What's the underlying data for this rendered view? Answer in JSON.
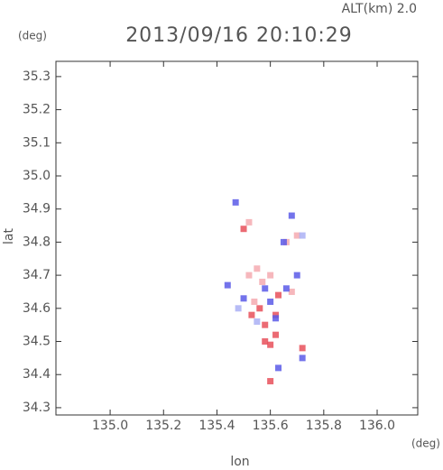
{
  "chart_data": {
    "type": "scatter",
    "title": "2013/09/16 20:10:29",
    "subtitle": "ALT(km) 2.0",
    "y_unit": "(deg)",
    "x_unit": "(deg)",
    "xlabel": "lon",
    "ylabel": "lat",
    "xlim": [
      134.797,
      136.152
    ],
    "ylim": [
      34.278,
      35.346
    ],
    "xticks": [
      {
        "value": 135,
        "label": "135.0"
      },
      135.2,
      135.4,
      135.6,
      135.8,
      {
        "value": 136,
        "label": "136.0"
      }
    ],
    "yticks": [
      34.3,
      34.4,
      34.5,
      34.6,
      34.7,
      34.8,
      34.9,
      {
        "value": 35,
        "label": "35.0"
      },
      35.1,
      35.2,
      35.3
    ],
    "grid": false,
    "x": [
      135.6,
      135.6,
      135.58,
      135.72,
      135.56,
      135.54,
      135.62,
      135.55,
      135.6,
      135.5,
      135.52,
      135.66,
      135.63,
      135.58,
      135.52,
      135.68,
      135.57,
      135.53,
      135.62,
      135.7,
      135.63,
      135.72,
      135.44,
      135.5,
      135.6,
      135.66,
      135.65,
      135.68,
      135.47,
      135.62,
      135.55,
      135.7,
      135.58,
      135.72,
      135.48
    ],
    "values": [
      34.38,
      34.49,
      34.5,
      34.48,
      34.6,
      34.62,
      34.58,
      34.72,
      34.7,
      34.84,
      34.86,
      34.8,
      34.64,
      34.55,
      34.7,
      34.65,
      34.68,
      34.58,
      34.52,
      34.82,
      34.42,
      34.45,
      34.67,
      34.63,
      34.62,
      34.66,
      34.8,
      34.88,
      34.92,
      34.57,
      34.56,
      34.7,
      34.66,
      34.82,
      34.6
    ],
    "colors": [
      "#e8505a",
      "#e8505a",
      "#e8505a",
      "#e8505a",
      "#e8505a",
      "#f4aab0",
      "#e8505a",
      "#f4aab0",
      "#f4aab0",
      "#e8505a",
      "#f4aab0",
      "#f4aab0",
      "#e8505a",
      "#e8505a",
      "#f4aab0",
      "#f4aab0",
      "#f4aab0",
      "#e8505a",
      "#e8505a",
      "#f4aab0",
      "#5a5ae8",
      "#5a5ae8",
      "#5a5ae8",
      "#5a5ae8",
      "#5a5ae8",
      "#5a5ae8",
      "#5a5ae8",
      "#5a5ae8",
      "#5a5ae8",
      "#5a5ae8",
      "#aab0f4",
      "#5a5ae8",
      "#5a5ae8",
      "#aab0f4",
      "#aab0f4"
    ]
  }
}
